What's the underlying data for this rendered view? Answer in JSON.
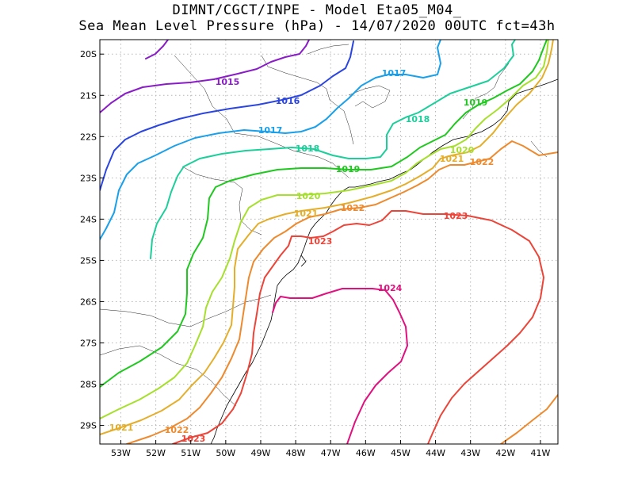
{
  "title_line1": "DIMNT/CGCT/INPE -  Model Eta05_M04_",
  "title_line2": "Sea Mean Level Pressure (hPa) - 14/07/2020 00UTC fct=43h",
  "map": {
    "lon_range": [
      -53.6,
      -40.5
    ],
    "lat_range": [
      -29.45,
      -19.65
    ],
    "lon_ticks": [
      "53W",
      "52W",
      "51W",
      "50W",
      "49W",
      "48W",
      "47W",
      "46W",
      "45W",
      "44W",
      "43W",
      "42W",
      "41W"
    ],
    "lat_ticks": [
      "20S",
      "21S",
      "22S",
      "23S",
      "24S",
      "25S",
      "26S",
      "27S",
      "28S",
      "29S"
    ]
  },
  "contours": [
    {
      "value": 1015,
      "color": "#8a1cc8",
      "labels": [
        "1015"
      ]
    },
    {
      "value": 1016,
      "color": "#2a45e0",
      "labels": [
        "1016"
      ]
    },
    {
      "value": 1017,
      "color": "#1aa0ea",
      "labels": [
        "1017",
        "1017"
      ]
    },
    {
      "value": 1018,
      "color": "#1ccf9a",
      "labels": [
        "1018",
        "1018"
      ]
    },
    {
      "value": 1019,
      "color": "#1fc81f",
      "labels": [
        "1019",
        "1019"
      ]
    },
    {
      "value": 1020,
      "color": "#a6df2c",
      "labels": [
        "1020",
        "1020"
      ]
    },
    {
      "value": 1021,
      "color": "#e4ae2a",
      "labels": [
        "1021",
        "1021",
        "1021"
      ]
    },
    {
      "value": 1022,
      "color": "#ee8a2e",
      "labels": [
        "1022",
        "1022",
        "1022"
      ]
    },
    {
      "value": 1023,
      "color": "#ec4438",
      "labels": [
        "1023",
        "1023",
        "1023"
      ]
    },
    {
      "value": 1024,
      "color": "#e0117f",
      "labels": [
        "1024"
      ]
    }
  ]
}
